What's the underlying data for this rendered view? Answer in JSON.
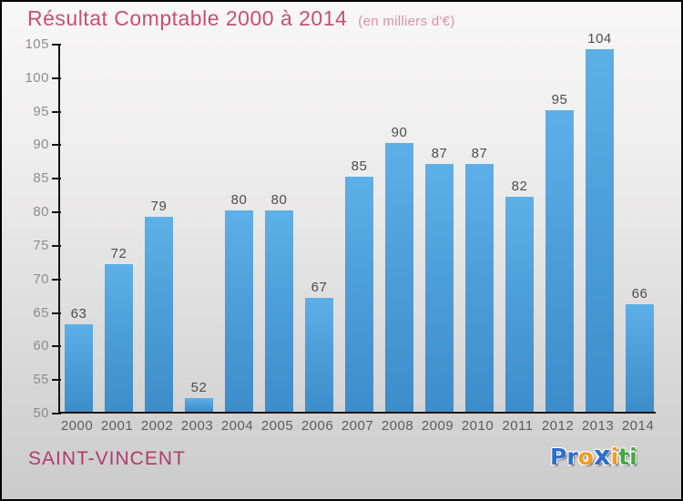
{
  "header": {
    "title": "Résultat Comptable 2000 à 2014",
    "subtitle": "(en milliers d'€)"
  },
  "footer": {
    "commune": "SAINT-VINCENT"
  },
  "logo": {
    "text": "Proxiti",
    "letters": [
      {
        "char": "P",
        "color": "#2a6fca"
      },
      {
        "char": "r",
        "color": "#2a6fca"
      },
      {
        "char": "o",
        "color": "#f49a1d"
      },
      {
        "char": "x",
        "color": "#2a6fca",
        "big": true
      },
      {
        "char": "i",
        "color": "#f49a1d"
      },
      {
        "char": "t",
        "color": "#41aa3f"
      },
      {
        "char": "i",
        "color": "#41aa3f"
      }
    ]
  },
  "colors": {
    "title": "#c94e73",
    "subtitle": "#dd8fa8",
    "commune": "#b03c67",
    "bar_top": "#5db0e7",
    "bar_bottom": "#3c8dc9",
    "axis": "#141414",
    "ytick_label": "#8d8d8d",
    "value_label": "#4d4d4d",
    "year_label": "#5c5c5c"
  },
  "chart_data": {
    "type": "bar",
    "title": "Résultat Comptable 2000 à 2014",
    "subtitle": "(en milliers d'€)",
    "categories": [
      "2000",
      "2001",
      "2002",
      "2003",
      "2004",
      "2005",
      "2006",
      "2007",
      "2008",
      "2009",
      "2010",
      "2011",
      "2012",
      "2013",
      "2014"
    ],
    "values": [
      63,
      72,
      79,
      52,
      80,
      80,
      67,
      85,
      90,
      87,
      87,
      82,
      95,
      104,
      66
    ],
    "xlabel": "",
    "ylabel": "",
    "ylim": [
      50,
      105
    ],
    "ytick_step": 5,
    "yticks": [
      50,
      55,
      60,
      65,
      70,
      75,
      80,
      85,
      90,
      95,
      100,
      105
    ],
    "grid": false,
    "legend": "none",
    "value_labels": true
  }
}
